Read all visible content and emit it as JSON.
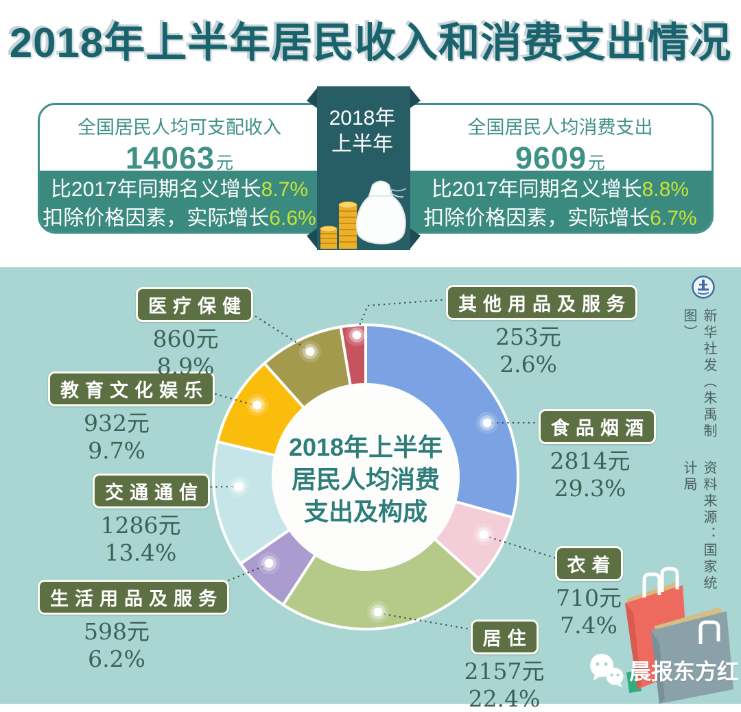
{
  "title": "2018年上半年居民收入和消费支出情况",
  "header": {
    "period": {
      "line1": "2018年",
      "line2": "上半年"
    },
    "income": {
      "label": "全国居民人均可支配收入",
      "value": "14063",
      "unit": "元",
      "nominal_prefix": "比2017年同期名义增长",
      "nominal_growth": "8.7%",
      "real_prefix": "扣除价格因素，实际增长",
      "real_growth": "6.6%"
    },
    "expenditure": {
      "label": "全国居民人均消费支出",
      "value": "9609",
      "unit": "元",
      "nominal_prefix": "比2017年同期名义增长",
      "nominal_growth": "8.8%",
      "real_prefix": "扣除价格因素，实际增长",
      "real_growth": "6.7%"
    }
  },
  "chart_data": {
    "type": "pie",
    "subtype": "donut",
    "title": "2018年上半年居民人均消费支出及构成",
    "center_label_lines": [
      "2018年上半年",
      "居民人均消费",
      "支出及构成"
    ],
    "unit": "元",
    "direction": "clockwise",
    "start_angle_deg": 0,
    "categories": [
      "食品烟酒",
      "衣着",
      "居住",
      "生活用品及服务",
      "交通通信",
      "教育文化娱乐",
      "医疗保健",
      "其他用品及服务"
    ],
    "values": [
      2814,
      710,
      2157,
      598,
      1286,
      932,
      860,
      253
    ],
    "percent_labels": [
      "29.3%",
      "7.4%",
      "22.4%",
      "6.2%",
      "13.4%",
      "9.7%",
      "8.9%",
      "2.6%"
    ],
    "colors": [
      "#7ba3e3",
      "#f3cdd8",
      "#b5c989",
      "#aa9cce",
      "#c6e5e9",
      "#fbbd0c",
      "#a39a4d",
      "#c65460"
    ],
    "legend_position": "around-callouts"
  },
  "credits": {
    "byline": "新华社发（朱禹制图）",
    "source": "资料来源：国家统计局"
  },
  "footer": {
    "wechat_name": "晨报东方红"
  },
  "icons": {
    "ribbon_icon": "money-bag-and-coins",
    "logo": "xinhua-emblem",
    "footer_icon": "wechat-bubbles",
    "footer_art": "shopping-bags"
  },
  "theme": {
    "title_color": "#1b636c",
    "teal_border": "#3f9186",
    "band_teal": "#3a8a7f",
    "growth_highlight": "#c7e334",
    "ribbon_teal": "#275e66",
    "chart_background": "#a9d6d2",
    "badge_green": "#5d7044",
    "value_text": "#3e6156"
  }
}
